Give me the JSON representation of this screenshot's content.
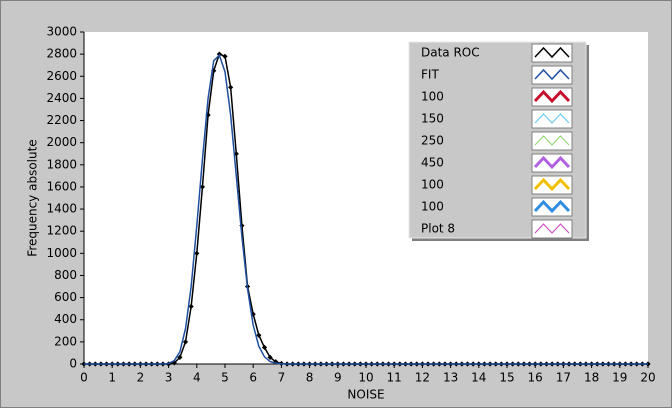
{
  "chart_data": {
    "type": "line",
    "x_label": "NOISE",
    "y_label": "Frequency absolute",
    "xlim": [
      0,
      20
    ],
    "ylim": [
      0,
      3000
    ],
    "xticks": [
      0,
      1,
      2,
      3,
      4,
      5,
      6,
      7,
      8,
      9,
      10,
      11,
      12,
      13,
      14,
      15,
      16,
      17,
      18,
      19,
      20
    ],
    "yticks": [
      0,
      200,
      400,
      600,
      800,
      1000,
      1200,
      1400,
      1600,
      1800,
      2000,
      2200,
      2400,
      2600,
      2800,
      3000
    ],
    "legend": "top-right",
    "x": [
      0,
      0.2,
      0.4,
      0.6,
      0.8,
      1,
      1.2,
      1.4,
      1.6,
      1.8,
      2,
      2.2,
      2.4,
      2.6,
      2.8,
      3,
      3.2,
      3.4,
      3.6,
      3.8,
      4,
      4.2,
      4.4,
      4.6,
      4.8,
      5,
      5.2,
      5.4,
      5.6,
      5.8,
      6,
      6.2,
      6.4,
      6.6,
      6.8,
      7,
      7.2,
      7.4,
      7.6,
      7.8,
      8,
      8.2,
      8.4,
      8.6,
      8.8,
      9,
      9.2,
      9.4,
      9.6,
      9.8,
      10,
      10.2,
      10.4,
      10.6,
      10.8,
      11,
      11.2,
      11.4,
      11.6,
      11.8,
      12,
      12.2,
      12.4,
      12.6,
      12.8,
      13,
      13.2,
      13.4,
      13.6,
      13.8,
      14,
      14.2,
      14.4,
      14.6,
      14.8,
      15,
      15.2,
      15.4,
      15.6,
      15.8,
      16,
      16.2,
      16.4,
      16.6,
      16.8,
      17,
      17.2,
      17.4,
      17.6,
      17.8,
      18,
      18.2,
      18.4,
      18.6,
      18.8,
      19,
      19.2,
      19.4,
      19.6,
      19.8,
      20
    ],
    "series": [
      {
        "name": "Data ROC",
        "color": "#000000",
        "line_width": 1.5,
        "markers": true,
        "values": [
          0,
          0,
          0,
          0,
          0,
          0,
          0,
          0,
          0,
          0,
          0,
          0,
          0,
          0,
          0,
          0,
          10,
          60,
          200,
          520,
          1000,
          1600,
          2250,
          2650,
          2800,
          2780,
          2500,
          1900,
          1250,
          700,
          450,
          260,
          150,
          60,
          20,
          5,
          0,
          0,
          0,
          0,
          0,
          0,
          0,
          0,
          0,
          0,
          0,
          0,
          0,
          0,
          0,
          0,
          0,
          0,
          0,
          0,
          0,
          0,
          0,
          0,
          0,
          0,
          0,
          0,
          0,
          0,
          0,
          0,
          0,
          0,
          0,
          0,
          0,
          0,
          0,
          0,
          0,
          0,
          0,
          0,
          0,
          0,
          0,
          0,
          0,
          0,
          0,
          0,
          0,
          0,
          0,
          0,
          0,
          0,
          0,
          0,
          0,
          0,
          0,
          0,
          0
        ]
      },
      {
        "name": "FIT",
        "color": "#1f4fa0",
        "line_width": 1.5,
        "values": [
          0,
          0,
          0,
          0,
          0,
          0,
          0,
          0,
          0,
          0,
          0,
          0,
          0,
          0,
          0,
          5,
          30,
          110,
          320,
          700,
          1250,
          1850,
          2400,
          2740,
          2790,
          2640,
          2250,
          1700,
          1150,
          680,
          350,
          160,
          65,
          22,
          7,
          2,
          0,
          0,
          0,
          0,
          0,
          0,
          0,
          0,
          0,
          0,
          0,
          0,
          0,
          0,
          0,
          0,
          0,
          0,
          0,
          0,
          0,
          0,
          0,
          0,
          0,
          0,
          0,
          0,
          0,
          0,
          0,
          0,
          0,
          0,
          0,
          0,
          0,
          0,
          0,
          0,
          0,
          0,
          0,
          0,
          0,
          0,
          0,
          0,
          0,
          0,
          0,
          0,
          0,
          0,
          0,
          0,
          0,
          0,
          0,
          0,
          0,
          0,
          0,
          0,
          0
        ]
      },
      {
        "name": "100",
        "color": "#c8102e",
        "line_width": 3
      },
      {
        "name": "150",
        "color": "#5bc8e8",
        "line_width": 1
      },
      {
        "name": "250",
        "color": "#8fd36a",
        "line_width": 1
      },
      {
        "name": "450",
        "color": "#b060e0",
        "line_width": 3
      },
      {
        "name": "100",
        "color": "#f0c000",
        "line_width": 3
      },
      {
        "name": "100",
        "color": "#2e8be0",
        "line_width": 3
      },
      {
        "name": "Plot 8",
        "color": "#d040c0",
        "line_width": 1
      }
    ]
  }
}
